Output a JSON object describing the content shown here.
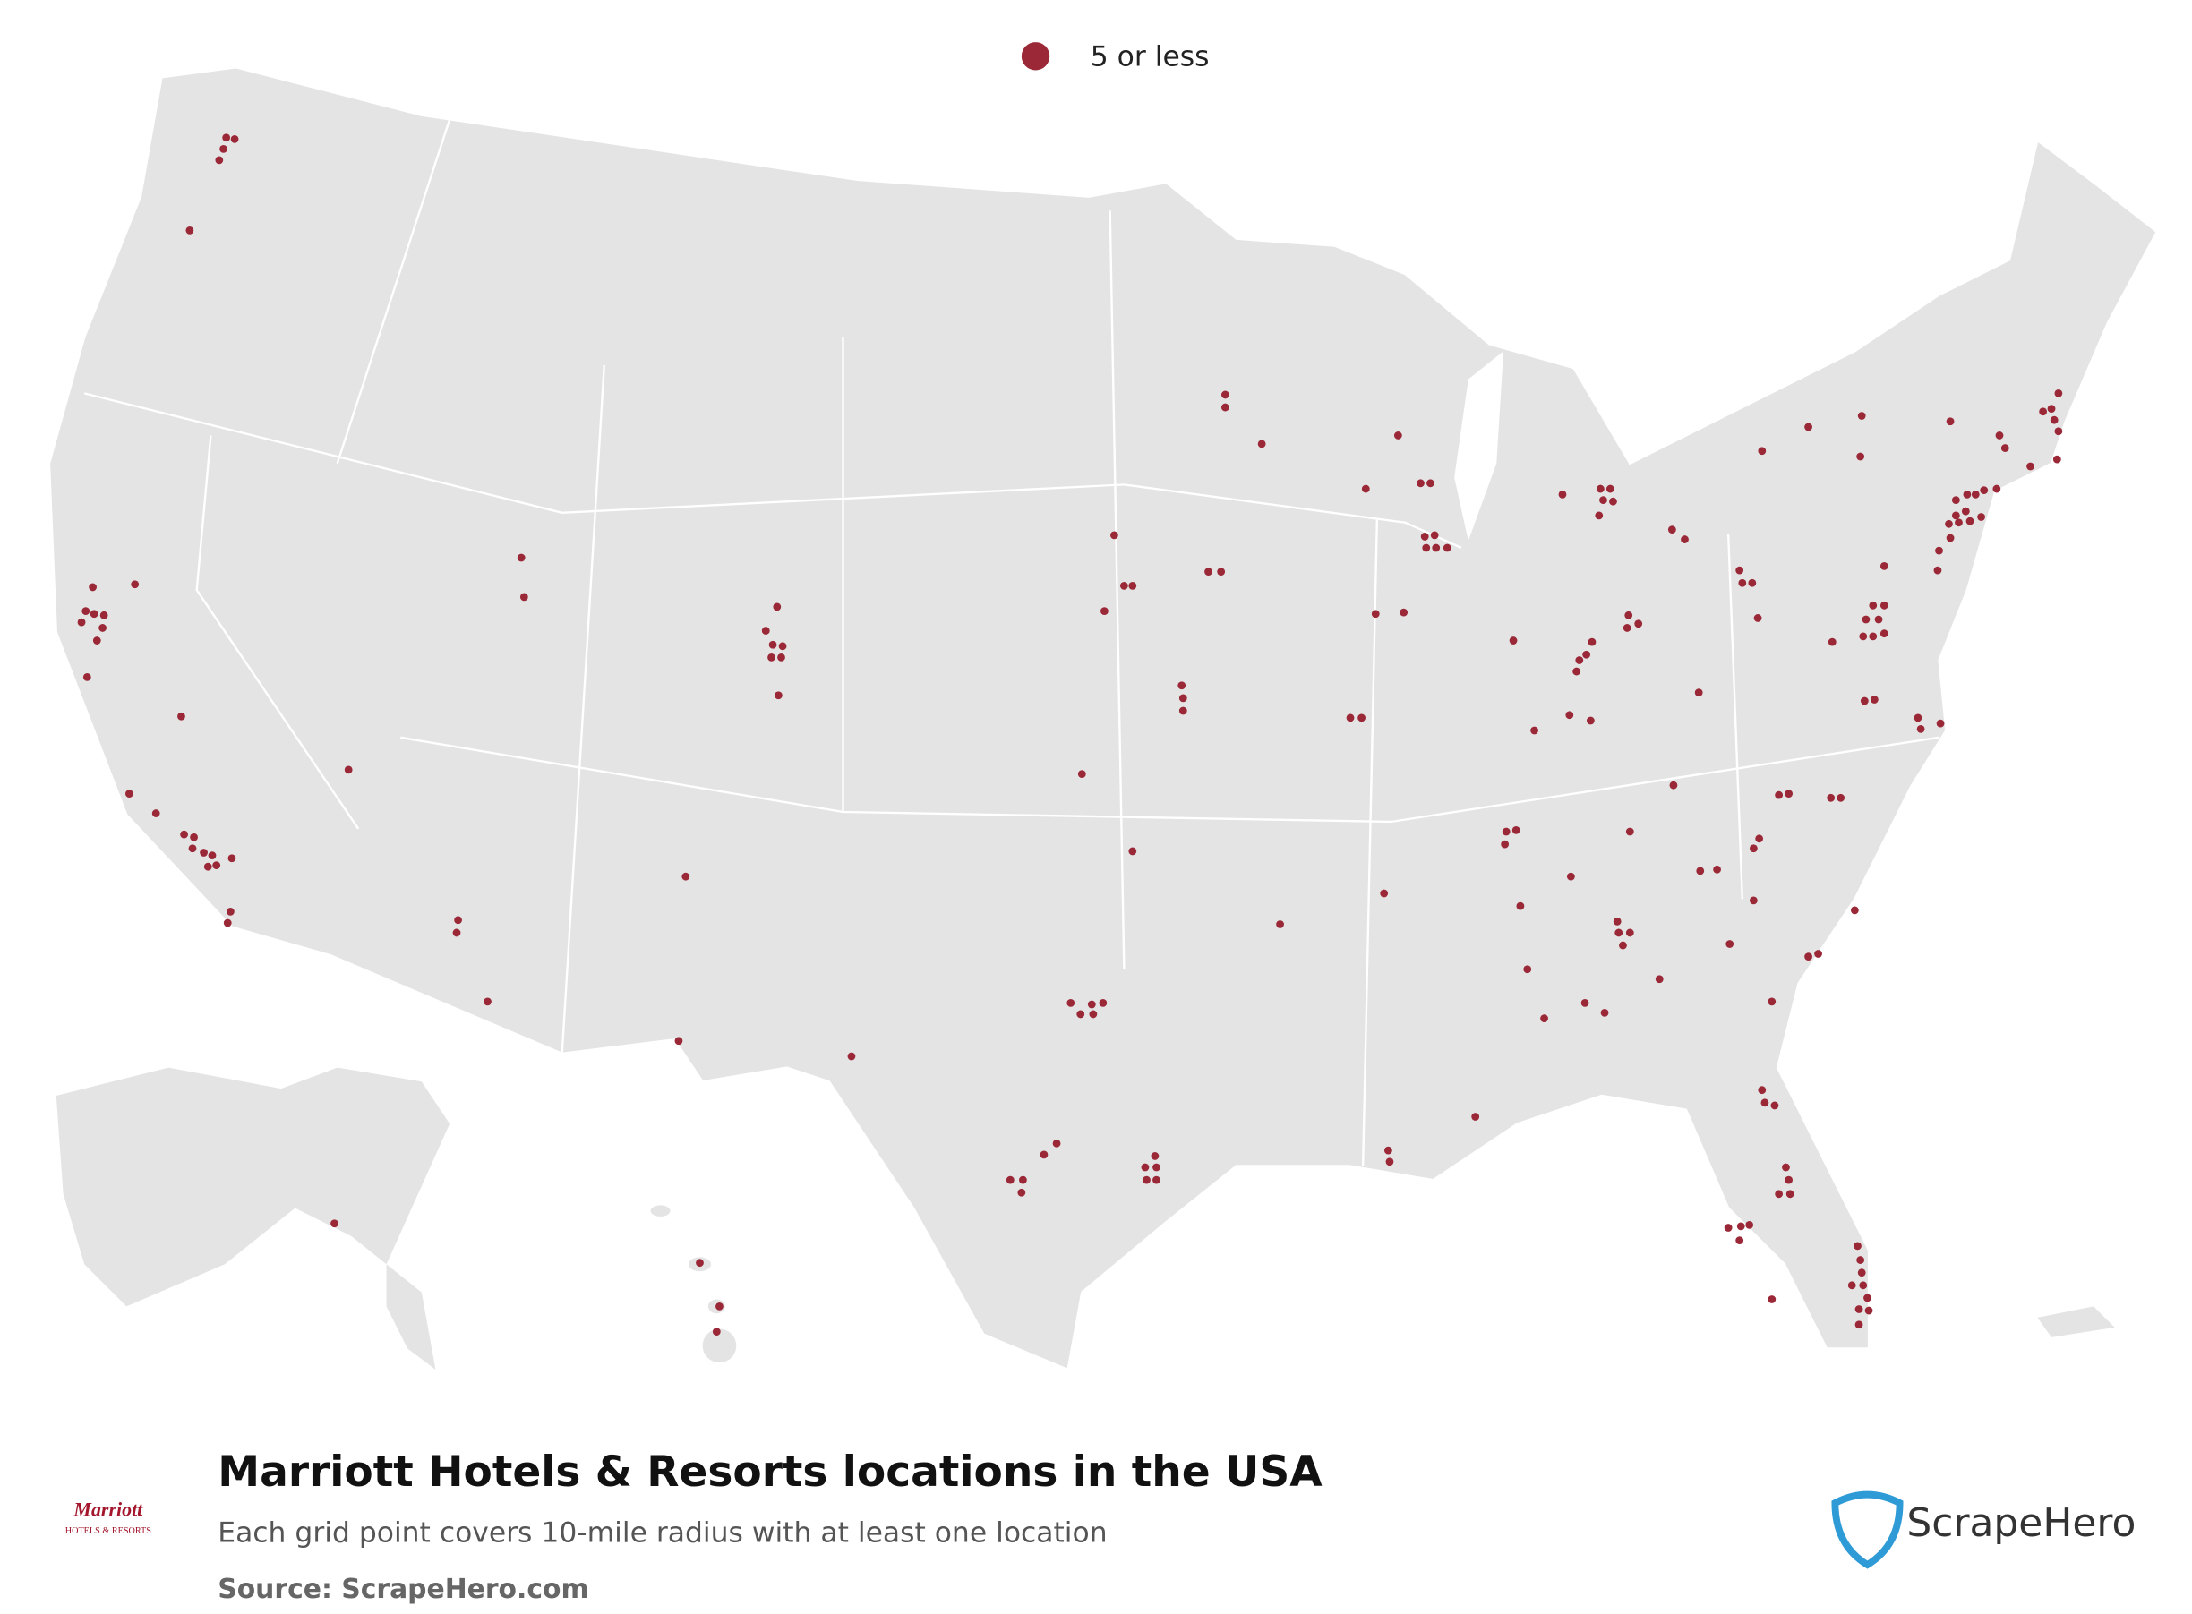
{
  "legend": {
    "label": "5 or less"
  },
  "title": "Marriott Hotels & Resorts locations in the USA",
  "subtitle": "Each grid point covers 10-mile radius with at least one location",
  "source": "Source: ScrapeHero.com",
  "brand_logo": {
    "name": "Marriott",
    "tagline": "HOTELS & RESORTS"
  },
  "publisher_logo": "ScrapeHero"
}
